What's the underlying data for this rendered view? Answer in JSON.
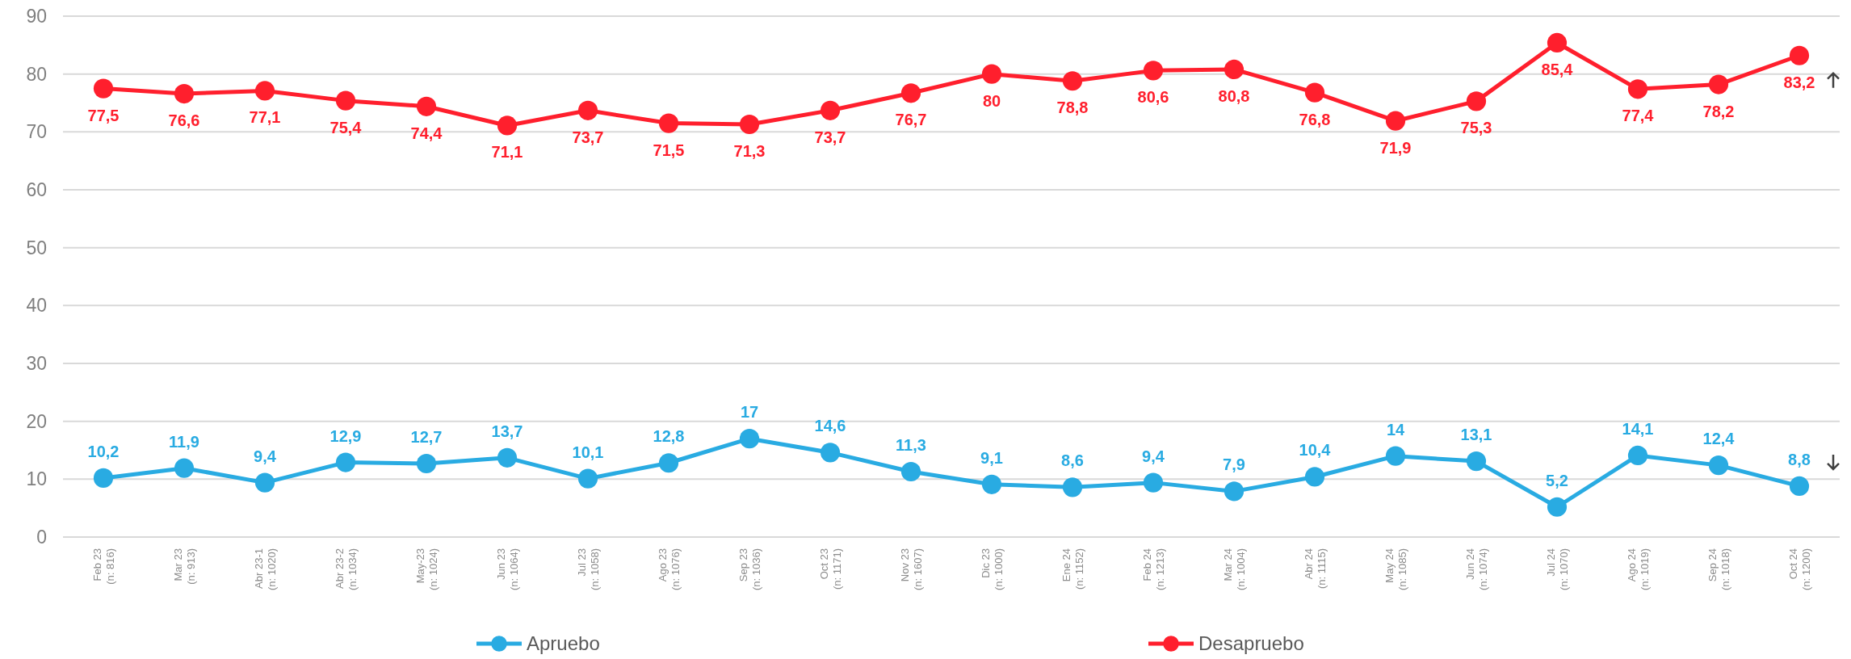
{
  "chart_data": {
    "type": "line",
    "categories": [
      "Feb 23\n(n: 816)",
      "Mar 23\n(n: 913)",
      "Abr 23-1\n(n: 1020)",
      "Abr 23-2\n(n: 1034)",
      "May-23\n(n: 1024)",
      "Jun 23\n(n: 1064)",
      "Jul 23\n(n: 1058)",
      "Ago 23\n(n: 1076)",
      "Sep 23\n(n: 1036)",
      "Oct 23\n(n: 1171)",
      "Nov 23\n(n: 1607)",
      "Dic 23\n(n: 1000)",
      "Ene 24\n(n: 1152)",
      "Feb 24\n(n: 1213)",
      "Mar 24\n(n: 1004)",
      "Abr 24\n(n: 1115)",
      "May 24\n(n: 1085)",
      "Jun 24\n(n: 1074)",
      "Jul 24\n(n: 1070)",
      "Ago 24\n(n: 1019)",
      "Sep 24\n(n: 1018)",
      "Oct 24\n(n: 1200)"
    ],
    "series": [
      {
        "name": "Apruebo",
        "color": "#29abe2",
        "values": [
          10.2,
          11.9,
          9.4,
          12.9,
          12.7,
          13.7,
          10.1,
          12.8,
          17,
          14.6,
          11.3,
          9.1,
          8.6,
          9.4,
          7.9,
          10.4,
          14,
          13.1,
          5.2,
          14.1,
          12.4,
          8.8
        ],
        "value_labels": [
          "10,2",
          "11,9",
          "9,4",
          "12,9",
          "12,7",
          "13,7",
          "10,1",
          "12,8",
          "17",
          "14,6",
          "11,3",
          "9,1",
          "8,6",
          "9,4",
          "7,9",
          "10,4",
          "14",
          "13,1",
          "5,2",
          "14,1",
          "12,4",
          "8,8"
        ]
      },
      {
        "name": "Desapruebo",
        "color": "#ff1f2d",
        "values": [
          77.5,
          76.6,
          77.1,
          75.4,
          74.4,
          71.1,
          73.7,
          71.5,
          71.3,
          73.7,
          76.7,
          80,
          78.8,
          80.6,
          80.8,
          76.8,
          71.9,
          75.3,
          85.4,
          77.4,
          78.2,
          83.2
        ],
        "value_labels": [
          "77,5",
          "76,6",
          "77,1",
          "75,4",
          "74,4",
          "71,1",
          "73,7",
          "71,5",
          "71,3",
          "73,7",
          "76,7",
          "80",
          "78,8",
          "80,6",
          "80,8",
          "76,8",
          "71,9",
          "75,3",
          "85,4",
          "77,4",
          "78,2",
          "83,2"
        ]
      }
    ],
    "ylim": [
      0,
      90
    ],
    "yticks": [
      0,
      10,
      20,
      30,
      40,
      50,
      60,
      70,
      80,
      90
    ],
    "grid": "y",
    "legend": "bottom",
    "marker": "circle",
    "line_style": "solid"
  }
}
